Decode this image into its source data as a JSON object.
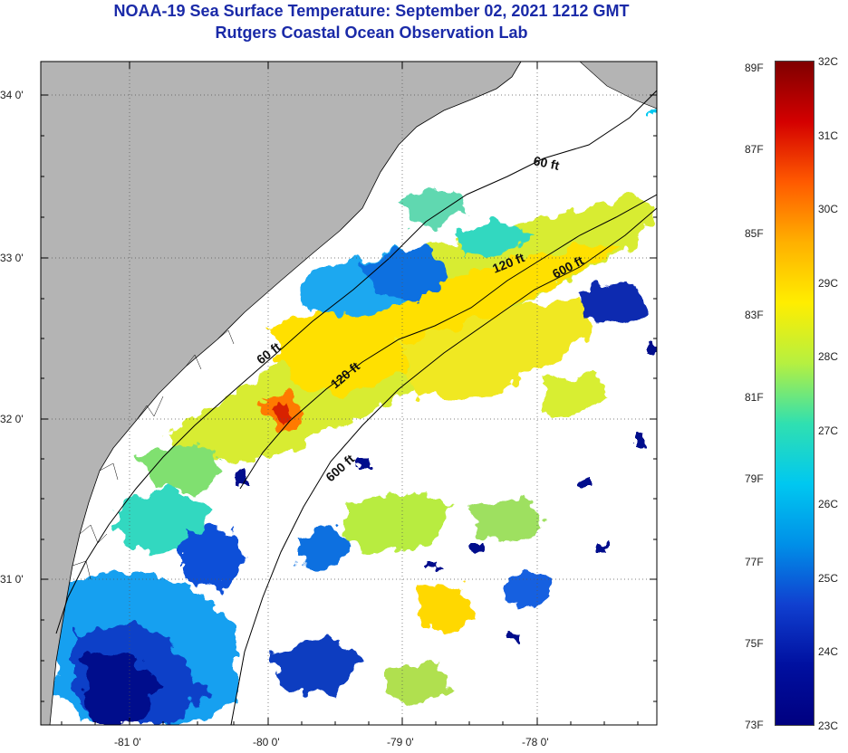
{
  "title_line1": "NOAA-19 Sea Surface Temperature:  September 02, 2021 1212 GMT",
  "title_line2": "Rutgers Coastal Ocean Observation Lab",
  "map": {
    "lat_ticks": [
      "34 0'",
      "33 0'",
      "32 0'",
      "31 0'"
    ],
    "lon_ticks": [
      "-81 0'",
      "-80 0'",
      "-79 0'",
      "-78 0'"
    ],
    "isobath_labels": [
      "60 ft",
      "120 ft",
      "600 ft",
      "60 ft",
      "120 ft",
      "600 ft"
    ],
    "colors": {
      "land": "#b4b4b4",
      "cloud": "#ffffff"
    }
  },
  "colorbar": {
    "fahrenheit": [
      "89F",
      "87F",
      "85F",
      "83F",
      "81F",
      "79F",
      "77F",
      "75F",
      "73F"
    ],
    "celsius": [
      "32C",
      "31C",
      "30C",
      "29C",
      "28C",
      "27C",
      "26C",
      "25C",
      "24C",
      "23C"
    ],
    "gradient": [
      "#7f0000",
      "#d40000",
      "#ff5a00",
      "#ffb000",
      "#ffee00",
      "#b6f040",
      "#30e0b0",
      "#00c8f0",
      "#0090e8",
      "#1040d0",
      "#0010a0",
      "#000080"
    ]
  }
}
